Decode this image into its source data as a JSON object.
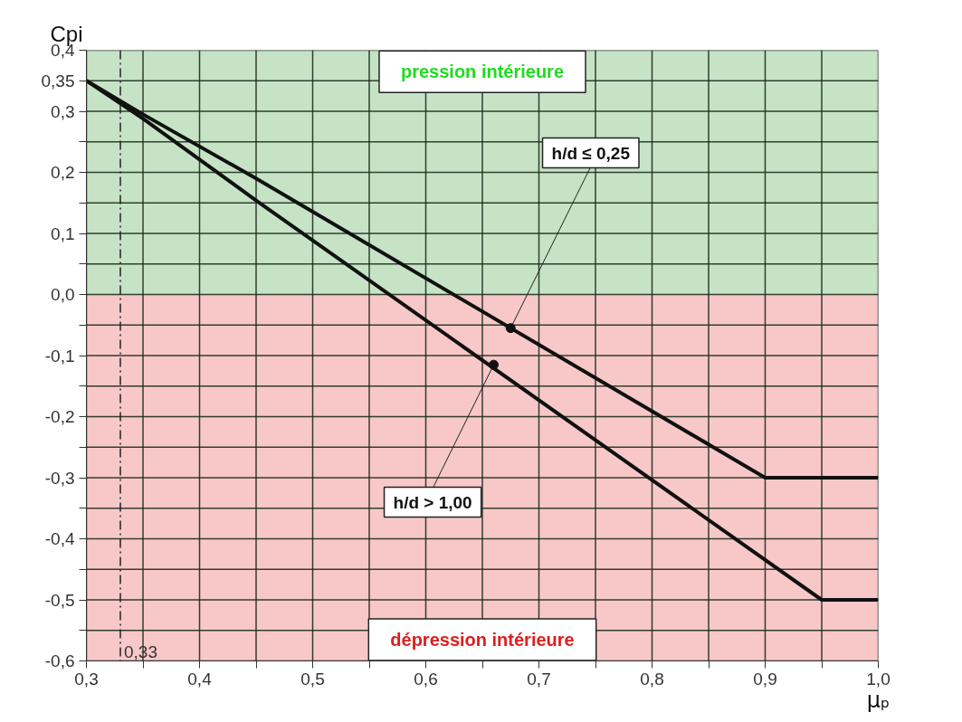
{
  "chart_data": {
    "type": "line",
    "xlabel": "μₚ",
    "ylabel": "Cpi",
    "series": [
      {
        "color": "#111111",
        "x": [
          0.3,
          0.35,
          0.45,
          0.9,
          1.0
        ],
        "values": [
          0.35,
          0.295,
          0.19,
          -0.3,
          -0.3
        ]
      },
      {
        "color": "#111111",
        "x": [
          0.3,
          0.35,
          0.45,
          0.95,
          1.0
        ],
        "values": [
          0.35,
          0.288,
          0.154,
          -0.5,
          -0.5
        ]
      }
    ],
    "xlim": [
      0.3,
      1.0
    ],
    "ylim": [
      -0.6,
      0.4
    ],
    "xticks": [
      {
        "value": 0.3,
        "label": "0,3"
      },
      {
        "value": 0.35,
        "label": null
      },
      {
        "value": 0.4,
        "label": "0,4"
      },
      {
        "value": 0.45,
        "label": null
      },
      {
        "value": 0.5,
        "label": "0,5"
      },
      {
        "value": 0.55,
        "label": null
      },
      {
        "value": 0.6,
        "label": "0,6"
      },
      {
        "value": 0.65,
        "label": null
      },
      {
        "value": 0.7,
        "label": "0,7"
      },
      {
        "value": 0.75,
        "label": null
      },
      {
        "value": 0.8,
        "label": "0,8"
      },
      {
        "value": 0.85,
        "label": null
      },
      {
        "value": 0.9,
        "label": "0,9"
      },
      {
        "value": 0.95,
        "label": null
      },
      {
        "value": 1.0,
        "label": "1,0"
      }
    ],
    "yticks": [
      {
        "value": -0.6,
        "label": "-0,6"
      },
      {
        "value": -0.55,
        "label": null
      },
      {
        "value": -0.5,
        "label": "-0,5"
      },
      {
        "value": -0.45,
        "label": null
      },
      {
        "value": -0.4,
        "label": "-0,4"
      },
      {
        "value": -0.35,
        "label": null
      },
      {
        "value": -0.3,
        "label": "-0,3"
      },
      {
        "value": -0.25,
        "label": null
      },
      {
        "value": -0.2,
        "label": "-0,2"
      },
      {
        "value": -0.15,
        "label": null
      },
      {
        "value": -0.1,
        "label": "-0,1"
      },
      {
        "value": -0.05,
        "label": null
      },
      {
        "value": 0.0,
        "label": "0,0"
      },
      {
        "value": 0.05,
        "label": null
      },
      {
        "value": 0.1,
        "label": "0,1"
      },
      {
        "value": 0.15,
        "label": null
      },
      {
        "value": 0.2,
        "label": "0,2"
      },
      {
        "value": 0.25,
        "label": null
      },
      {
        "value": 0.3,
        "label": "0,3"
      },
      {
        "value": 0.35,
        "label": "0,35"
      },
      {
        "value": 0.4,
        "label": "0,4"
      }
    ],
    "grid": true,
    "marker": "none",
    "line_style": "solid",
    "ref_lines": [
      {
        "axis": "x",
        "value": 0.33,
        "label": "0,33",
        "color": "#222222",
        "line_style": "dashdot"
      }
    ],
    "bands": [
      {
        "axis": "y",
        "from": 0.0,
        "to": 0.4,
        "label": "pression intérieure",
        "color": "#c6e3c6"
      },
      {
        "axis": "y",
        "from": -0.6,
        "to": 0.0,
        "label": "dépression intérieure",
        "color": "#f8c8c8"
      }
    ],
    "annotations": [
      {
        "text": "h/d ≤ 0,25",
        "x": 0.675,
        "y": -0.055
      },
      {
        "text": "h/d > 1,00",
        "x": 0.66,
        "y": -0.115
      }
    ]
  }
}
